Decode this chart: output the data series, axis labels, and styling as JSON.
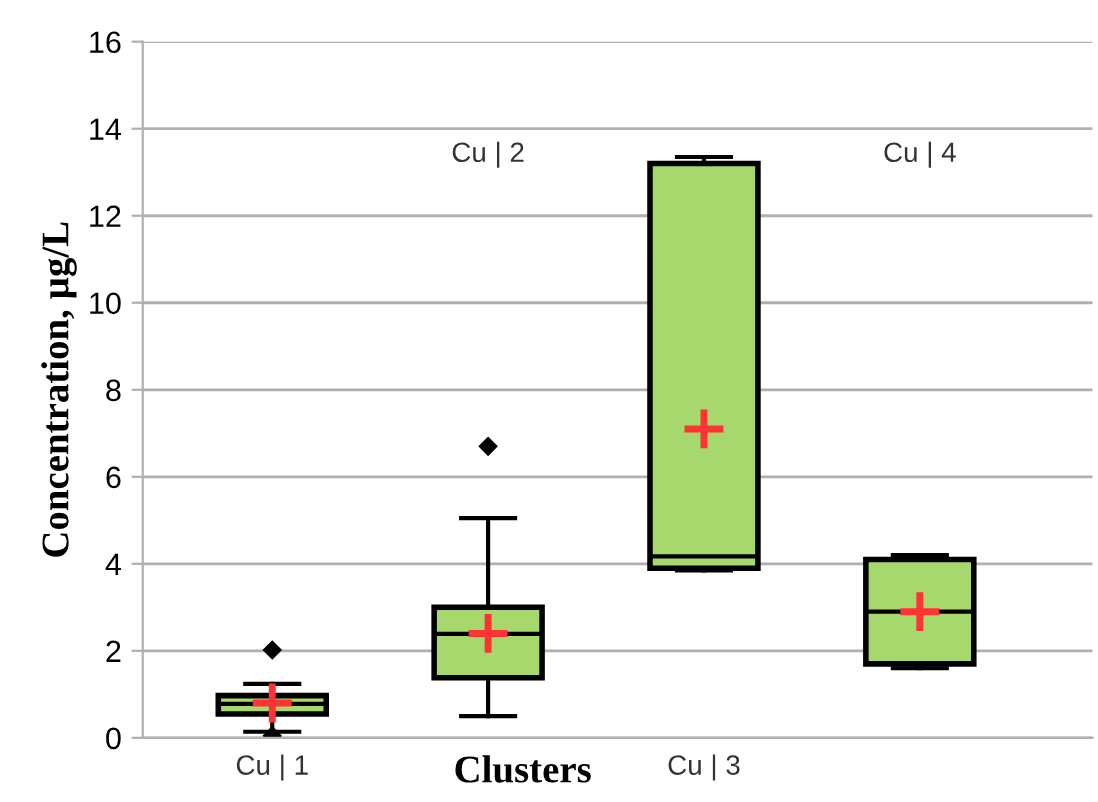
{
  "chart_data": {
    "type": "box",
    "xlabel": "Clusters",
    "ylabel": "Concentration, µg/L",
    "categories": [
      "Cu | 1",
      "Cu | 2",
      "Cu | 3",
      "Cu | 4"
    ],
    "color": "#a6d86e",
    "ylim": [
      0,
      16
    ],
    "yticks": [
      0,
      2,
      4,
      6,
      8,
      10,
      12,
      14,
      16
    ],
    "grid": "y",
    "boxes": [
      {
        "low": 0.14,
        "q1": 0.55,
        "median": 0.78,
        "q3": 0.97,
        "high": 1.24,
        "mean": 0.8,
        "outliers": [
          2.02,
          0.05
        ]
      },
      {
        "low": 0.5,
        "q1": 1.38,
        "median": 2.39,
        "q3": 3.0,
        "high": 5.05,
        "mean": 2.4,
        "outliers": [
          6.7
        ]
      },
      {
        "low": 3.85,
        "q1": 3.9,
        "median": 4.17,
        "q3": 13.2,
        "high": 13.35,
        "mean": 7.1
      },
      {
        "low": 1.6,
        "q1": 1.7,
        "median": 2.9,
        "q3": 4.1,
        "high": 4.2,
        "mean": 2.9
      }
    ]
  }
}
